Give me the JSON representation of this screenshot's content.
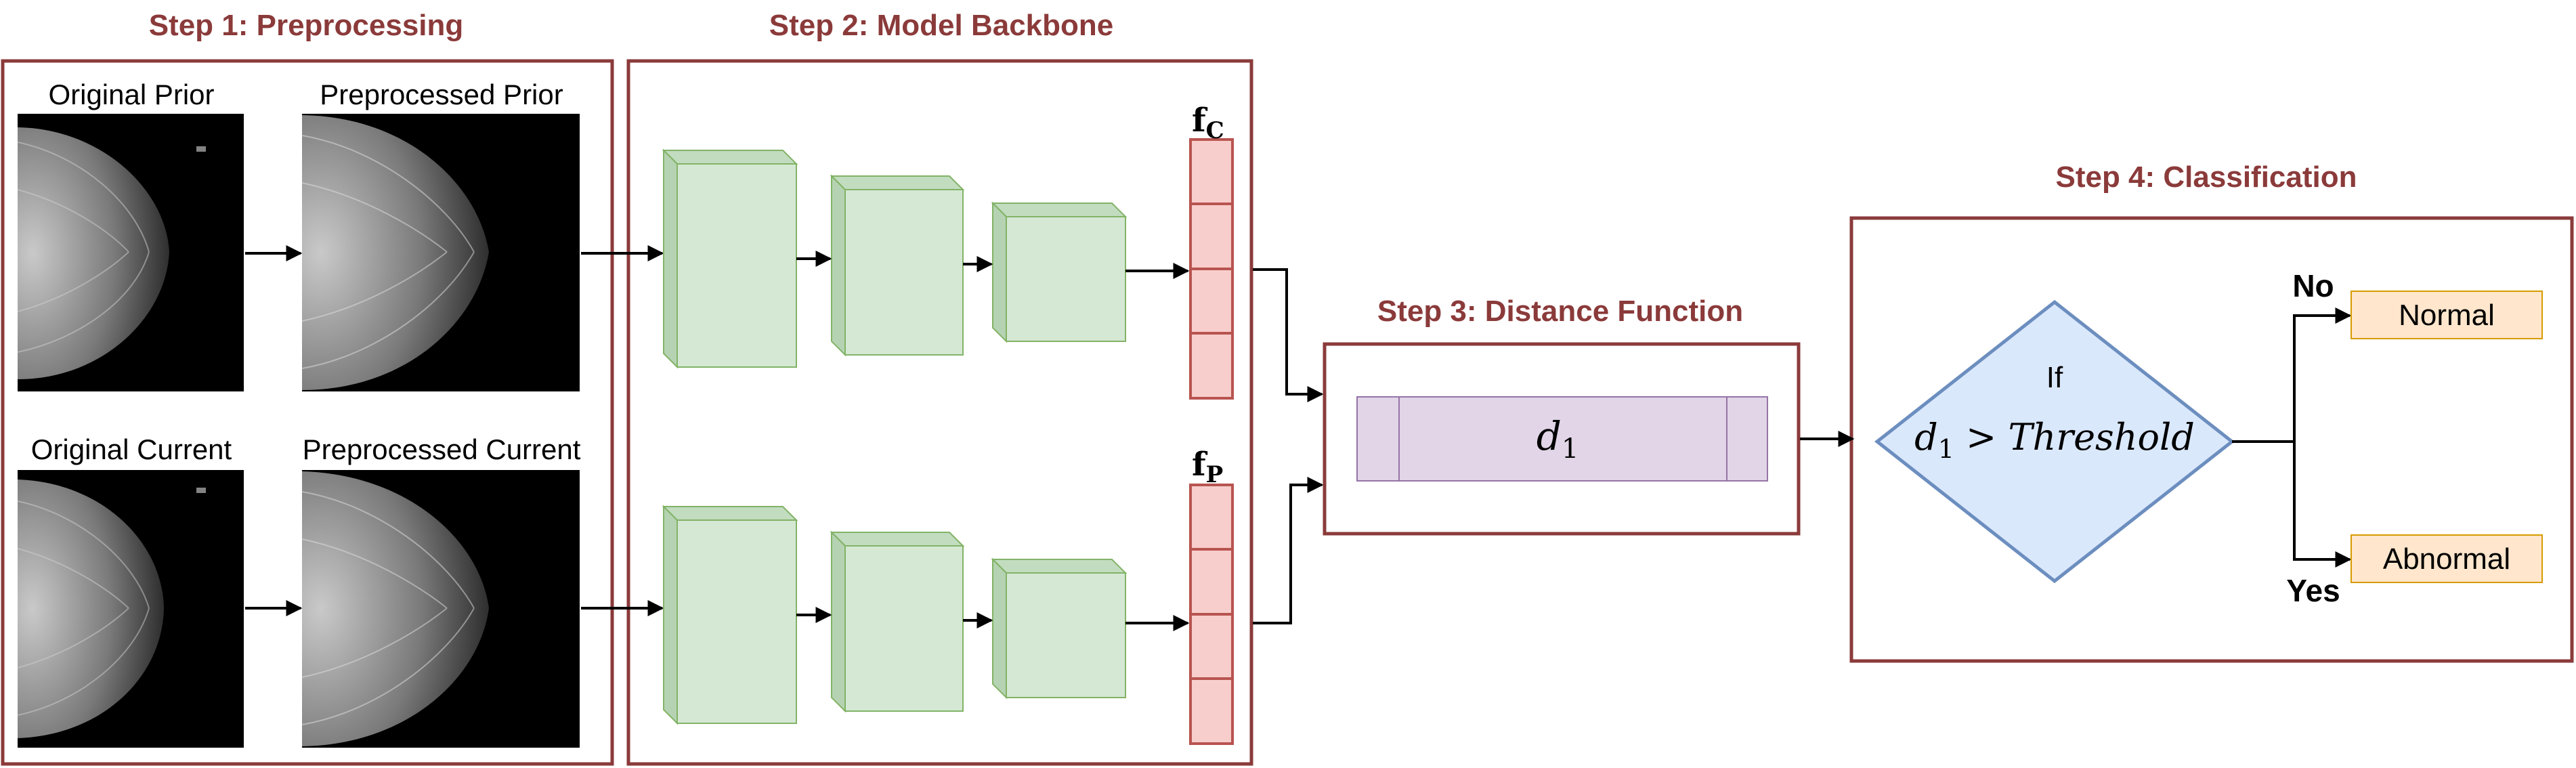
{
  "steps": {
    "step1": {
      "title": "Step 1: Preprocessing"
    },
    "step2": {
      "title": "Step 2: Model Backbone"
    },
    "step3": {
      "title": "Step 3: Distance Function"
    },
    "step4": {
      "title": "Step 4: Classification"
    }
  },
  "images": {
    "original_prior": "Original Prior",
    "preprocessed_prior": "Preprocessed Prior",
    "original_current": "Original Current",
    "preprocessed_current": "Preprocessed Current"
  },
  "features": {
    "fc": {
      "base": "f",
      "sub": "C"
    },
    "fp": {
      "base": "f",
      "sub": "P"
    }
  },
  "distance": {
    "base": "d",
    "sub": "1"
  },
  "classification": {
    "if_label": "If",
    "condition_base": "d",
    "condition_sub": "1",
    "condition_rest": " > Threshold",
    "no_label": "No",
    "yes_label": "Yes",
    "normal": "Normal",
    "abnormal": "Abnormal"
  },
  "colors": {
    "step_border": "#8b3a3a",
    "step_title": "#8b3a3a",
    "cnn_fill": "#d5e8d4",
    "cnn_stroke": "#82b366",
    "feature_fill": "#f8cecc",
    "feature_stroke": "#b85450",
    "distance_fill": "#e1d5e7",
    "distance_stroke": "#9673a6",
    "diamond_fill": "#dae8fc",
    "diamond_stroke": "#6c8ebf",
    "output_fill": "#ffe6cc",
    "output_stroke": "#d79b00"
  }
}
